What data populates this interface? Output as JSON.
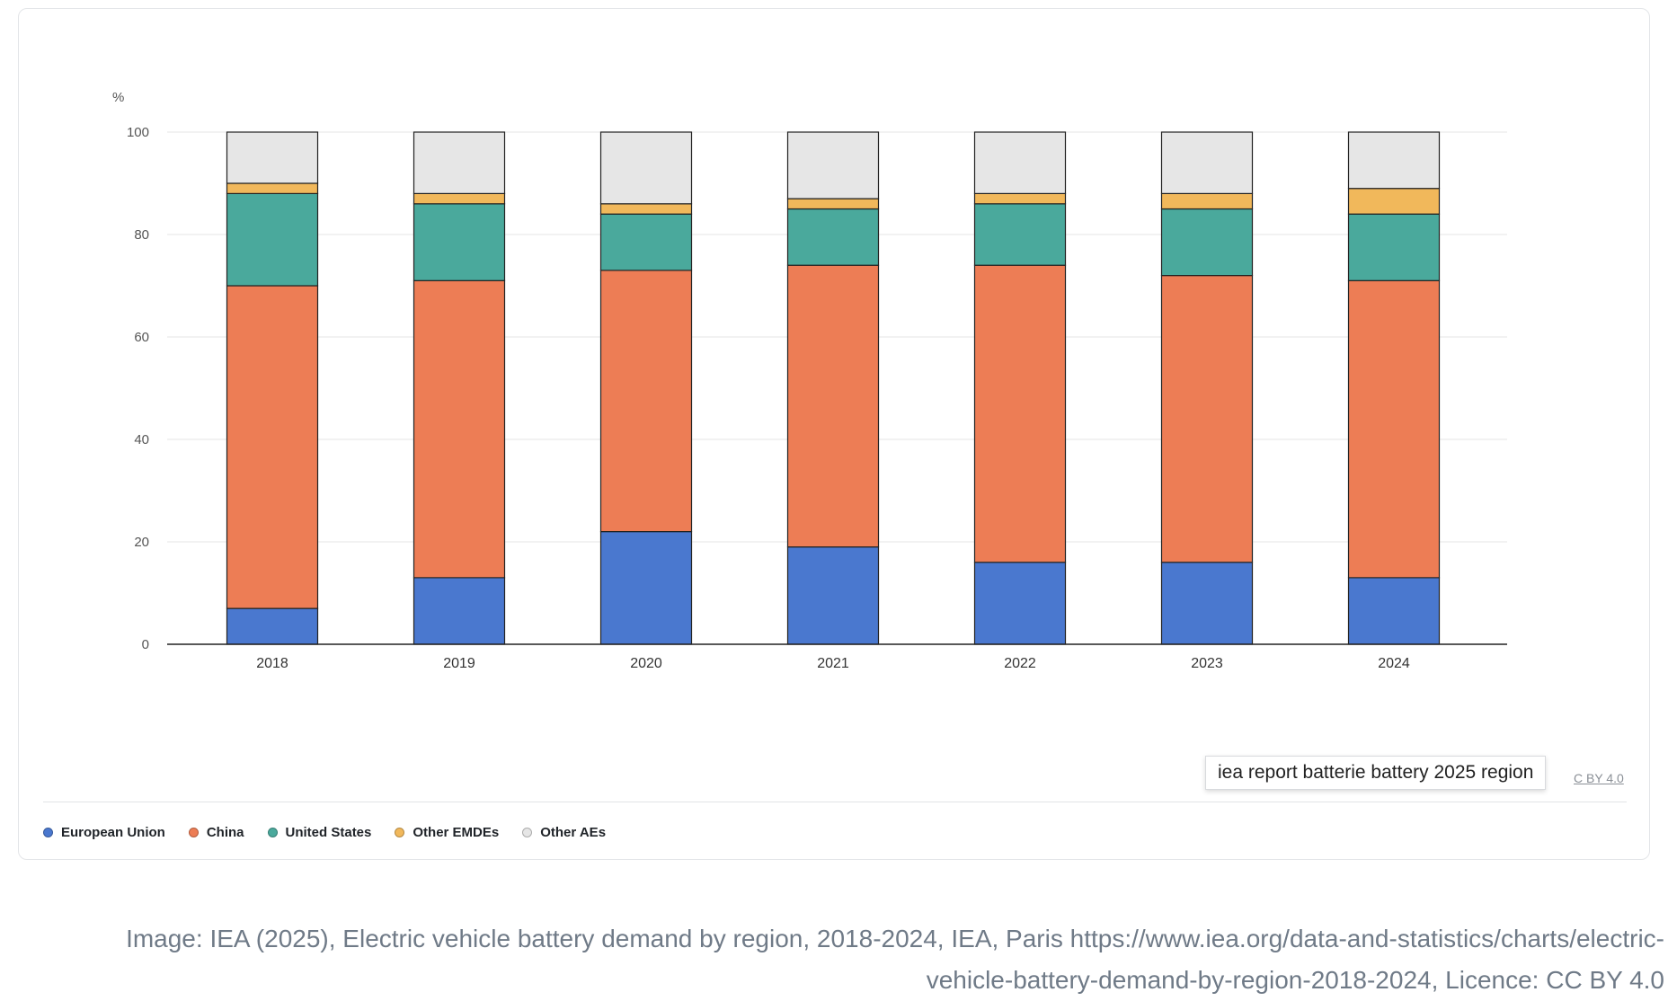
{
  "tooltip_text": "iea report batterie battery 2025 region",
  "licence_link": "C BY 4.0",
  "caption": "Image: IEA (2025), Electric vehicle battery demand by region, 2018-2024, IEA, Paris https://www.iea.org/data-and-statistics/charts/electric-vehicle-battery-demand-by-region-2018-2024, Licence: CC BY 4.0",
  "chart_data": {
    "type": "bar",
    "stacked": true,
    "y_unit": "%",
    "ylim": [
      0,
      100
    ],
    "yticks": [
      0,
      20,
      40,
      60,
      80,
      100
    ],
    "grid": true,
    "legend_position": "bottom-left",
    "categories": [
      "2018",
      "2019",
      "2020",
      "2021",
      "2022",
      "2023",
      "2024"
    ],
    "series": [
      {
        "name": "European Union",
        "color": "#4a78cf",
        "values": [
          7,
          13,
          22,
          19,
          16,
          16,
          13
        ]
      },
      {
        "name": "China",
        "color": "#ed7d55",
        "values": [
          63,
          58,
          51,
          55,
          58,
          56,
          58
        ]
      },
      {
        "name": "United States",
        "color": "#4aa99c",
        "values": [
          18,
          15,
          11,
          11,
          12,
          13,
          13
        ]
      },
      {
        "name": "Other EMDEs",
        "color": "#f1b85b",
        "values": [
          2,
          2,
          2,
          2,
          2,
          3,
          5
        ]
      },
      {
        "name": "Other AEs",
        "color": "#e6e6e6",
        "values": [
          10,
          12,
          14,
          13,
          12,
          12,
          11
        ]
      }
    ]
  }
}
